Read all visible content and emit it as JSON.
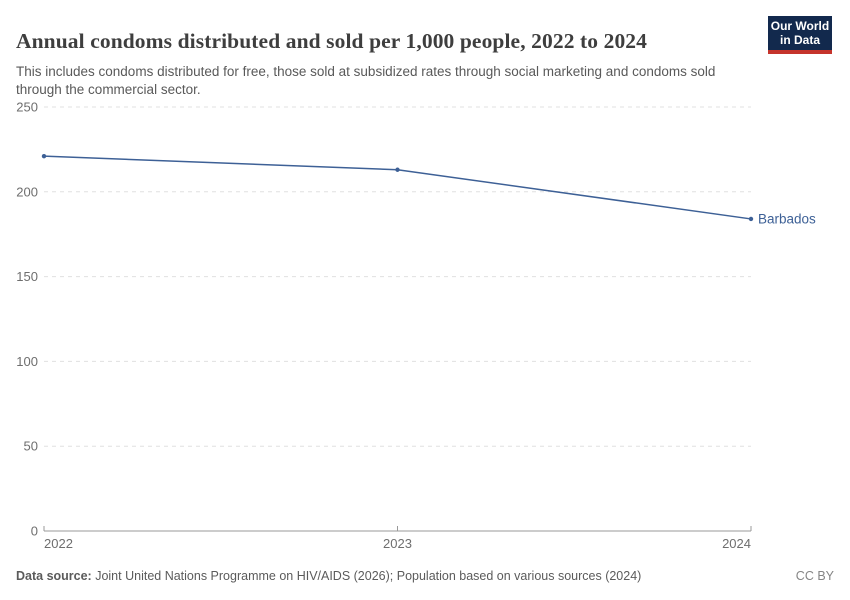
{
  "header": {
    "title": "Annual condoms distributed and sold per 1,000 people, 2022 to 2024",
    "subtitle": "This includes condoms distributed for free, those sold at subsidized rates through social marketing and condoms sold through the commercial sector."
  },
  "logo": {
    "line1": "Our World",
    "line2": "in Data",
    "bg_color": "#12294d",
    "bar_color": "#c5342c"
  },
  "chart_data": {
    "type": "line",
    "x": [
      2022,
      2023,
      2024
    ],
    "series": [
      {
        "name": "Barbados",
        "values": [
          221,
          213,
          184
        ],
        "color": "#3d6096"
      }
    ],
    "title": "Annual condoms distributed and sold per 1,000 people, 2022 to 2024",
    "xlabel": "",
    "ylabel": "",
    "ylim": [
      0,
      250
    ],
    "yticks": [
      0,
      50,
      100,
      150,
      200,
      250
    ],
    "xticks": [
      2022,
      2023,
      2024
    ],
    "grid": "horizontal-dashed",
    "legend_position": "line-end-label"
  },
  "footer": {
    "data_source_label": "Data source:",
    "data_source_text": " Joint United Nations Programme on HIV/AIDS (2026); Population based on various sources (2024)",
    "license": "CC BY"
  },
  "colors": {
    "line": "#3d6096",
    "grid": "#e0e0e0",
    "axis": "#999999",
    "tick_label": "#6e6e6e"
  }
}
